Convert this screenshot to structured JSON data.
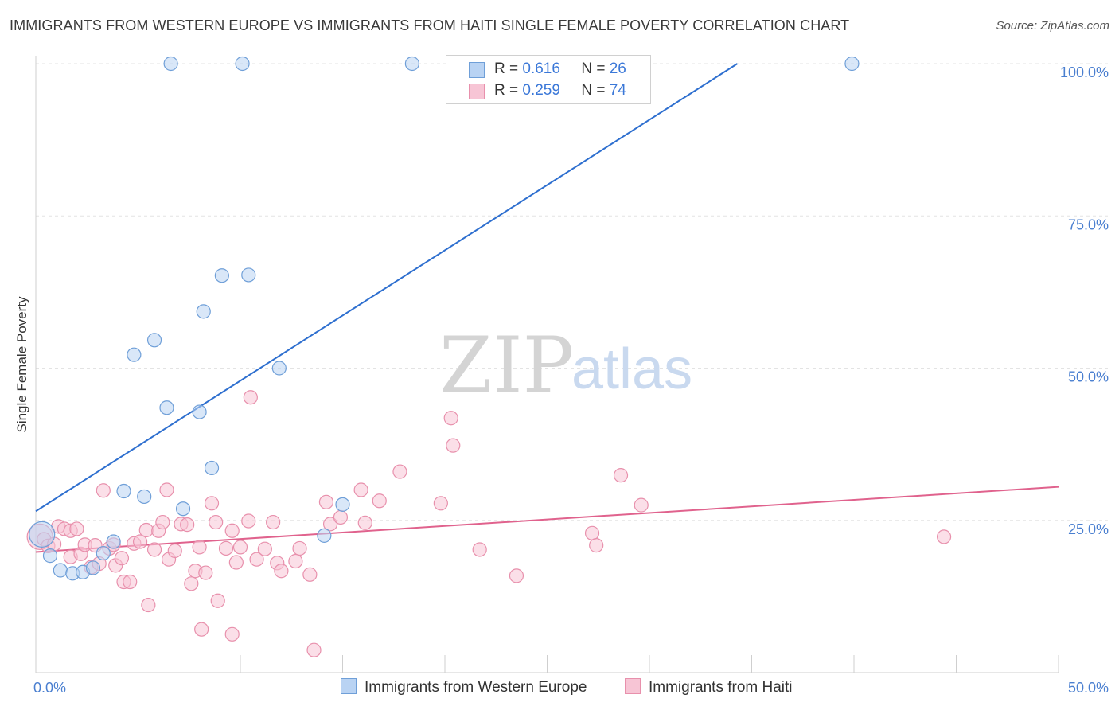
{
  "title": "IMMIGRANTS FROM WESTERN EUROPE VS IMMIGRANTS FROM HAITI SINGLE FEMALE POVERTY CORRELATION CHART",
  "source": "Source: ZipAtlas.com",
  "watermark": {
    "zip": "ZIP",
    "atlas": "atlas"
  },
  "legend": {
    "r_label": "R =",
    "n_label": "N =",
    "series": [
      {
        "r": "0.616",
        "n": "26"
      },
      {
        "r": "0.259",
        "n": "74"
      }
    ]
  },
  "colors": {
    "blue_fill": "#b9d3f3",
    "blue_stroke": "#6f9fd8",
    "blue_line": "#2e6fcf",
    "pink_fill": "#f7c5d5",
    "pink_stroke": "#e890ac",
    "pink_line": "#e0628d"
  },
  "chart_data": {
    "type": "scatter",
    "title": "IMMIGRANTS FROM WESTERN EUROPE VS IMMIGRANTS FROM HAITI SINGLE FEMALE POVERTY CORRELATION CHART",
    "xlabel": "",
    "ylabel": "Single Female Poverty",
    "xlim": [
      0,
      50
    ],
    "ylim": [
      0,
      102
    ],
    "x_tick_labels": [
      "0.0%",
      "50.0%"
    ],
    "y_ticks": [
      25,
      50,
      75,
      100
    ],
    "y_tick_labels": [
      "25.0%",
      "50.0%",
      "75.0%",
      "100.0%"
    ],
    "grid": true,
    "series": [
      {
        "name": "Immigrants from Western Europe",
        "r": 0.616,
        "n": 26,
        "trend": {
          "x": [
            0,
            34.3
          ],
          "y": [
            26.5,
            100
          ]
        },
        "points": [
          {
            "x": 0.3,
            "y": 22.7,
            "big": true
          },
          {
            "x": 0.7,
            "y": 19.2
          },
          {
            "x": 1.2,
            "y": 16.8
          },
          {
            "x": 1.8,
            "y": 16.3
          },
          {
            "x": 2.3,
            "y": 16.5
          },
          {
            "x": 2.8,
            "y": 17.2
          },
          {
            "x": 3.3,
            "y": 19.6
          },
          {
            "x": 3.8,
            "y": 21.5
          },
          {
            "x": 4.3,
            "y": 29.8
          },
          {
            "x": 4.8,
            "y": 52.2
          },
          {
            "x": 5.3,
            "y": 28.9
          },
          {
            "x": 5.8,
            "y": 54.6
          },
          {
            "x": 6.4,
            "y": 43.5
          },
          {
            "x": 6.6,
            "y": 100
          },
          {
            "x": 7.2,
            "y": 26.9
          },
          {
            "x": 8.0,
            "y": 42.8
          },
          {
            "x": 8.2,
            "y": 59.3
          },
          {
            "x": 8.6,
            "y": 33.6
          },
          {
            "x": 9.1,
            "y": 65.2
          },
          {
            "x": 10.1,
            "y": 100
          },
          {
            "x": 10.4,
            "y": 65.3
          },
          {
            "x": 11.9,
            "y": 50.0
          },
          {
            "x": 14.1,
            "y": 22.5
          },
          {
            "x": 15.0,
            "y": 27.6
          },
          {
            "x": 18.4,
            "y": 100
          },
          {
            "x": 39.9,
            "y": 100
          }
        ]
      },
      {
        "name": "Immigrants from Haiti",
        "r": 0.259,
        "n": 74,
        "trend": {
          "x": [
            0,
            50
          ],
          "y": [
            19.8,
            30.5
          ]
        },
        "points": [
          {
            "x": 0.2,
            "y": 22.3,
            "big": true
          },
          {
            "x": 0.4,
            "y": 21.9
          },
          {
            "x": 0.6,
            "y": 20.8
          },
          {
            "x": 0.9,
            "y": 21.1
          },
          {
            "x": 1.1,
            "y": 24.0
          },
          {
            "x": 1.4,
            "y": 23.6
          },
          {
            "x": 1.7,
            "y": 23.3
          },
          {
            "x": 1.7,
            "y": 19.0
          },
          {
            "x": 2.0,
            "y": 23.6
          },
          {
            "x": 2.2,
            "y": 19.5
          },
          {
            "x": 2.4,
            "y": 21.0
          },
          {
            "x": 2.7,
            "y": 17.3
          },
          {
            "x": 2.9,
            "y": 20.9
          },
          {
            "x": 3.1,
            "y": 17.9
          },
          {
            "x": 3.3,
            "y": 29.9
          },
          {
            "x": 3.6,
            "y": 20.4
          },
          {
            "x": 3.8,
            "y": 21.0
          },
          {
            "x": 3.9,
            "y": 17.6
          },
          {
            "x": 4.2,
            "y": 18.8
          },
          {
            "x": 4.3,
            "y": 14.9
          },
          {
            "x": 4.6,
            "y": 14.9
          },
          {
            "x": 4.8,
            "y": 21.2
          },
          {
            "x": 5.1,
            "y": 21.5
          },
          {
            "x": 5.4,
            "y": 23.4
          },
          {
            "x": 5.5,
            "y": 11.1
          },
          {
            "x": 5.8,
            "y": 20.2
          },
          {
            "x": 6.0,
            "y": 23.3
          },
          {
            "x": 6.2,
            "y": 24.7
          },
          {
            "x": 6.4,
            "y": 30.0
          },
          {
            "x": 6.5,
            "y": 18.6
          },
          {
            "x": 6.8,
            "y": 20.0
          },
          {
            "x": 7.1,
            "y": 24.4
          },
          {
            "x": 7.4,
            "y": 24.3
          },
          {
            "x": 7.6,
            "y": 14.6
          },
          {
            "x": 7.8,
            "y": 16.7
          },
          {
            "x": 8.0,
            "y": 20.6
          },
          {
            "x": 8.1,
            "y": 7.1
          },
          {
            "x": 8.3,
            "y": 16.4
          },
          {
            "x": 8.6,
            "y": 27.8
          },
          {
            "x": 8.8,
            "y": 24.7
          },
          {
            "x": 8.9,
            "y": 11.8
          },
          {
            "x": 9.3,
            "y": 20.4
          },
          {
            "x": 9.6,
            "y": 6.3
          },
          {
            "x": 9.6,
            "y": 23.3
          },
          {
            "x": 9.8,
            "y": 18.1
          },
          {
            "x": 10.0,
            "y": 20.6
          },
          {
            "x": 10.4,
            "y": 24.9
          },
          {
            "x": 10.5,
            "y": 45.2
          },
          {
            "x": 10.8,
            "y": 18.6
          },
          {
            "x": 11.2,
            "y": 20.3
          },
          {
            "x": 11.6,
            "y": 24.7
          },
          {
            "x": 11.8,
            "y": 18.0
          },
          {
            "x": 12.0,
            "y": 16.7
          },
          {
            "x": 12.7,
            "y": 18.3
          },
          {
            "x": 12.9,
            "y": 20.4
          },
          {
            "x": 13.4,
            "y": 16.1
          },
          {
            "x": 13.6,
            "y": 3.7
          },
          {
            "x": 14.2,
            "y": 28.0
          },
          {
            "x": 14.4,
            "y": 24.4
          },
          {
            "x": 14.9,
            "y": 25.5
          },
          {
            "x": 15.9,
            "y": 30.0
          },
          {
            "x": 16.1,
            "y": 24.6
          },
          {
            "x": 16.8,
            "y": 28.2
          },
          {
            "x": 17.8,
            "y": 33.0
          },
          {
            "x": 19.8,
            "y": 27.8
          },
          {
            "x": 20.3,
            "y": 41.8
          },
          {
            "x": 20.4,
            "y": 37.3
          },
          {
            "x": 21.7,
            "y": 20.2
          },
          {
            "x": 23.5,
            "y": 15.9
          },
          {
            "x": 27.2,
            "y": 22.9
          },
          {
            "x": 27.4,
            "y": 20.9
          },
          {
            "x": 28.6,
            "y": 32.4
          },
          {
            "x": 29.6,
            "y": 27.5
          },
          {
            "x": 44.4,
            "y": 22.3
          }
        ]
      }
    ]
  }
}
